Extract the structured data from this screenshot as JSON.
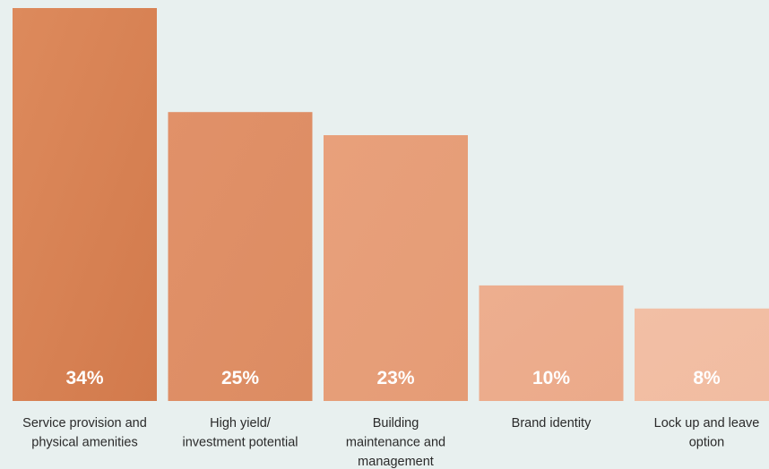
{
  "chart_data": {
    "type": "bar",
    "categories": [
      [
        "Service provision and",
        "physical amenities"
      ],
      [
        "High yield/",
        "investment potential"
      ],
      [
        "Building",
        "maintenance and",
        "management"
      ],
      [
        "Brand identity"
      ],
      [
        "Lock up and leave",
        "option"
      ]
    ],
    "values": [
      34,
      25,
      23,
      10,
      8
    ],
    "value_labels": [
      "34%",
      "25%",
      "23%",
      "10%",
      "8%"
    ],
    "ylim": [
      0,
      34
    ],
    "grid": false,
    "legend": "none",
    "colors": {
      "bar_gradient_start": [
        "#dd8a5c",
        "#e19169",
        "#e8a07b",
        "#edae8f",
        "#f2bfa5"
      ],
      "bar_gradient_end": [
        "#d27a4c",
        "#dc8c62",
        "#e59c76",
        "#ebaa8a",
        "#f1bca1"
      ],
      "background": "#e8f0ef",
      "value_text": "#ffffff",
      "category_text": "#2a2a2a"
    }
  }
}
